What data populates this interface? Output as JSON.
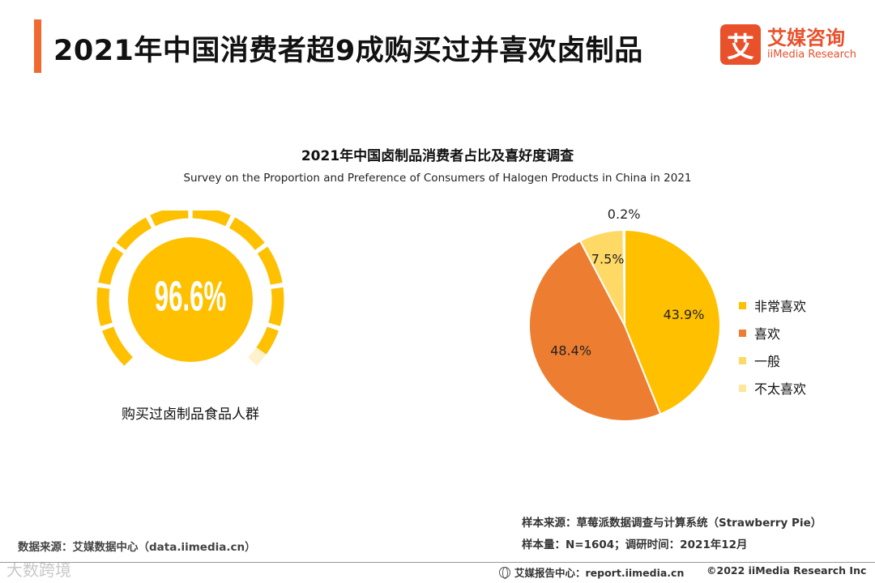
{
  "page": {
    "title": "2021年中国消费者超9成购买过并喜欢卤制品"
  },
  "logo": {
    "mark": "艾",
    "cn": "艾媒咨询",
    "en": "iiMedia Research"
  },
  "chart_data": [
    {
      "type": "gauge",
      "value": 96.6,
      "value_label": "96.6%",
      "caption": "购买过卤制品食品人群",
      "colors": {
        "main": "#ffc000",
        "track": "#fff1cc"
      }
    },
    {
      "type": "pie",
      "title": "2021年中国卤制品消费者占比及喜好度调查",
      "subtitle": "Survey on the Proportion and Preference of Consumers of Halogen Products in China in 2021",
      "slices": [
        {
          "name": "非常喜欢",
          "value": 43.9,
          "label": "43.9%",
          "color": "#ffc000"
        },
        {
          "name": "喜欢",
          "value": 48.4,
          "label": "48.4%",
          "color": "#ed7d31"
        },
        {
          "name": "一般",
          "value": 7.5,
          "label": "7.5%",
          "color": "#ffd966"
        },
        {
          "name": "不太喜欢",
          "value": 0.2,
          "label": "0.2%",
          "color": "#ffe699"
        }
      ],
      "legend_position": "right"
    }
  ],
  "notes": {
    "sample_source": "样本来源：草莓派数据调查与计算系统（Strawberry Pie）",
    "sample_size": "样本量：N=1604；调研时间：2021年12月",
    "data_source": "数据来源：艾媒数据中心（data.iimedia.cn）"
  },
  "footer": {
    "report_center": "艾媒报告中心：report.iimedia.cn",
    "copyright": "©2022  iiMedia Research  Inc",
    "watermark": "大数跨境"
  }
}
